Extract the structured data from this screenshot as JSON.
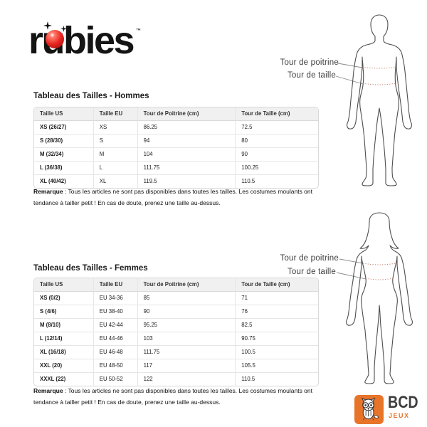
{
  "logo": {
    "part1": "r",
    "part2": "u",
    "part3": "bies",
    "tm": "™"
  },
  "figures": {
    "chest_label": "Tour de poitrine",
    "waist_label": "Tour de taille"
  },
  "men": {
    "title": "Tableau des Tailles - Hommes",
    "table": {
      "headers": [
        "Taille US",
        "Taille EU",
        "Tour de Poitrine (cm)",
        "Tour de Taille (cm)"
      ],
      "rows": [
        [
          "XS (26/27)",
          "XS",
          "86.25",
          "72.5"
        ],
        [
          "S (28/30)",
          "S",
          "94",
          "80"
        ],
        [
          "M (32/34)",
          "M",
          "104",
          "90"
        ],
        [
          "L (36/38)",
          "L",
          "111.75",
          "100.25"
        ],
        [
          "XL (40/42)",
          "XL",
          "119.5",
          "110.5"
        ]
      ]
    },
    "note_label": "Remarque",
    "note_text": " : Tous les articles ne sont pas disponibles dans toutes les tailles. Les costumes moulants ont tendance à tailler petit ! En cas de doute, prenez une taille au-dessus."
  },
  "women": {
    "title": "Tableau des Tailles - Femmes",
    "table": {
      "headers": [
        "Taille US",
        "Taille EU",
        "Tour de Poitrine (cm)",
        "Tour de Taille (cm)"
      ],
      "rows": [
        [
          "XS (0/2)",
          "EU 34-36",
          "85",
          "71"
        ],
        [
          "S (4/6)",
          "EU 38-40",
          "90",
          "76"
        ],
        [
          "M (8/10)",
          "EU 42-44",
          "95.25",
          "82.5"
        ],
        [
          "L (12/14)",
          "EU 44-46",
          "103",
          "90.75"
        ],
        [
          "XL (16/18)",
          "EU 46-48",
          "111.75",
          "100.5"
        ],
        [
          "XXL (20)",
          "EU 48-50",
          "117",
          "105.5"
        ],
        [
          "XXXL (22)",
          "EU 50-52",
          "122",
          "110.5"
        ]
      ]
    },
    "note_label": "Remarque",
    "note_text": " : Tous les articles ne sont pas disponibles dans toutes les tailles. Les costumes moulants ont tendance à tailler petit ! En cas de doute, prenez une taille au-dessus."
  },
  "footer_logo": {
    "bcd": "BCD",
    "jeux": "JEUX"
  },
  "colors": {
    "brand_red": "#e8231f",
    "bcd_orange": "#e8742a",
    "table_border": "#d9d9d9",
    "header_bg": "#f0f0f0",
    "measure_dash": "#c4826f",
    "outline_gray": "#4d4d4d"
  }
}
